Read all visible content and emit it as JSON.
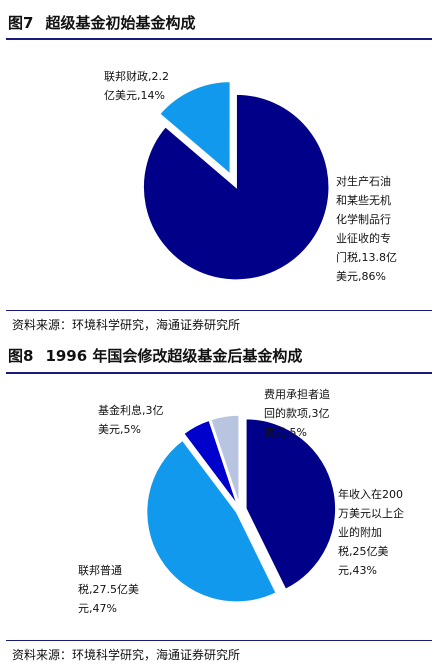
{
  "chart_data": [
    {
      "type": "pie",
      "figure_number": "图7",
      "title": "超级基金初始基金构成",
      "slices": [
        {
          "name": "联邦财政",
          "value_label": "2.2亿美元",
          "value": 2.2,
          "percent": 14,
          "color": "#1199ee",
          "label_lines": [
            "联邦财政,2.2",
            "亿美元,14%"
          ]
        },
        {
          "name": "对生产石油和某些无机化学制品行业征收的专门税",
          "value_label": "13.8亿美元",
          "value": 13.8,
          "percent": 86,
          "color": "#000088",
          "label_lines": [
            "对生产石油",
            "和某些无机",
            "化学制品行",
            "业征收的专",
            "门税,13.8亿",
            "美元,86%"
          ]
        }
      ],
      "source": "资料来源：环境科学研究，海通证券研究所"
    },
    {
      "type": "pie",
      "figure_number": "图8",
      "title": "1996 年国会修改超级基金后基金构成",
      "slices": [
        {
          "name": "年收入在200万美元以上企业的附加税",
          "value_label": "25亿美元",
          "value": 25,
          "percent": 43,
          "color": "#000088",
          "label_lines": [
            "年收入在200",
            "万美元以上企",
            "业的附加",
            "税,25亿美",
            "元,43%"
          ]
        },
        {
          "name": "联邦普通税",
          "value_label": "27.5亿美元",
          "value": 27.5,
          "percent": 47,
          "color": "#1199ee",
          "label_lines": [
            "联邦普通",
            "税,27.5亿美",
            "元,47%"
          ]
        },
        {
          "name": "基金利息",
          "value_label": "3亿美元",
          "value": 3,
          "percent": 5,
          "color": "#0000cc",
          "label_lines": [
            "基金利息,3亿",
            "美元,5%"
          ]
        },
        {
          "name": "费用承担者追回的款项",
          "value_label": "3亿美元",
          "value": 3,
          "percent": 5,
          "color": "#b8c4e0",
          "label_lines": [
            "费用承担者追",
            "回的款项,3亿",
            "美元,5%"
          ]
        }
      ],
      "source": "资料来源：环境科学研究，海通证券研究所"
    }
  ]
}
